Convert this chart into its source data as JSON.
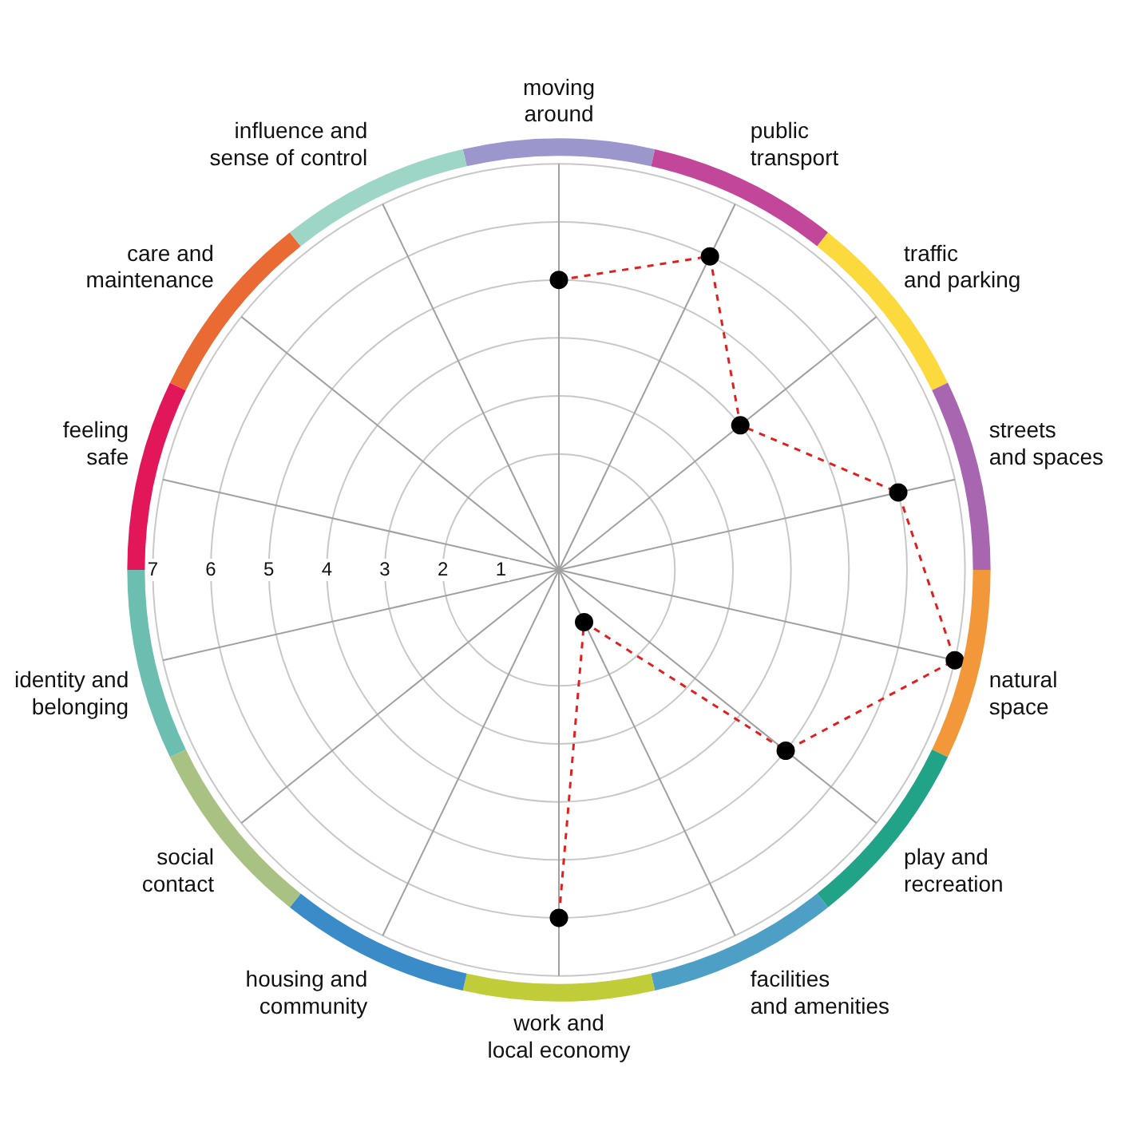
{
  "chart_data": {
    "type": "radar",
    "categories": [
      "moving around",
      "public transport",
      "traffic and parking",
      "streets and spaces",
      "natural space",
      "play and recreation",
      "facilities and amenities",
      "work and local economy",
      "housing and community",
      "social contact",
      "identity and belonging",
      "feeling safe",
      "care and maintenance",
      "influence and sense of control"
    ],
    "colors": [
      "#9b97cc",
      "#c2479a",
      "#fcd93d",
      "#a865b0",
      "#f2973a",
      "#21a388",
      "#4d9fc6",
      "#c0cc38",
      "#3b8bc8",
      "#a9c283",
      "#6cbfb0",
      "#e2175a",
      "#ea6a33",
      "#9dd5c6"
    ],
    "series": [
      {
        "color": "#e02020",
        "values": [
          5,
          6,
          4,
          6,
          7,
          5,
          1,
          6,
          null,
          null,
          null,
          null,
          null,
          null
        ]
      }
    ],
    "ylim": [
      0,
      7
    ],
    "yticks": [
      1,
      2,
      3,
      4,
      5,
      6,
      7
    ],
    "grid": true,
    "legend": false,
    "marker": "circle",
    "line_style": "dashed"
  }
}
